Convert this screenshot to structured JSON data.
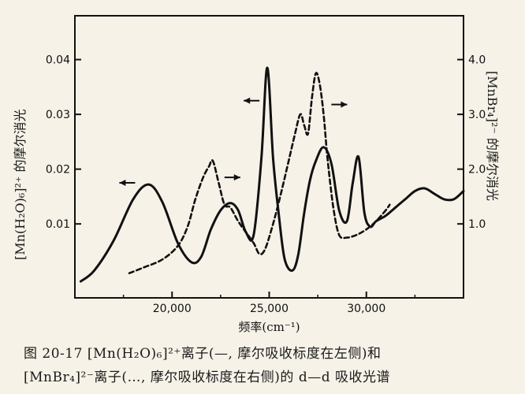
{
  "chart_data": {
    "type": "line",
    "xlabel": "频率(cm⁻¹)",
    "ylabel_left": "[Mn(H₂O)₆]²⁺ 的摩尔消光",
    "ylabel_right": "[MnBr₄]²⁻ 的摩尔消光",
    "x_ticks": [
      20000,
      25000,
      30000
    ],
    "x_tick_labels": [
      "20,000",
      "25,000",
      "30,000"
    ],
    "xlim": [
      15000,
      35000
    ],
    "y_left_ticks": [
      0.01,
      0.02,
      0.03,
      0.04
    ],
    "y_left_tick_labels": [
      "0.01",
      "0.02",
      "0.03",
      "0.04"
    ],
    "ylim_left": [
      -0.0035,
      0.048
    ],
    "y_right_ticks": [
      1.0,
      2.0,
      3.0,
      4.0
    ],
    "y_right_tick_labels": [
      "1.0",
      "2.0",
      "3.0",
      "4.0"
    ],
    "ylim_right": [
      -0.35,
      4.8
    ],
    "series": [
      {
        "name": "[Mn(H₂O)₆]²⁺",
        "axis": "left",
        "style": "solid",
        "x": [
          15300,
          16000,
          17000,
          18000,
          18800,
          19500,
          20300,
          21000,
          21500,
          22000,
          22500,
          23000,
          23400,
          23800,
          24200,
          24600,
          24900,
          25200,
          25500,
          25800,
          26200,
          26500,
          26800,
          27100,
          27400,
          27800,
          28200,
          28600,
          29000,
          29300,
          29600,
          29900,
          30200,
          30500,
          31000,
          31500,
          32000,
          32500,
          33000,
          33500,
          34000,
          34500,
          35000
        ],
        "y": [
          -0.0005,
          0.0015,
          0.007,
          0.0145,
          0.0172,
          0.014,
          0.0065,
          0.003,
          0.004,
          0.009,
          0.0125,
          0.0138,
          0.0125,
          0.0085,
          0.008,
          0.022,
          0.0385,
          0.022,
          0.0115,
          0.0035,
          0.0015,
          0.0045,
          0.012,
          0.018,
          0.0215,
          0.024,
          0.021,
          0.0125,
          0.0105,
          0.0175,
          0.0222,
          0.012,
          0.0095,
          0.0105,
          0.0115,
          0.013,
          0.0145,
          0.016,
          0.0165,
          0.0155,
          0.0145,
          0.0145,
          0.016
        ]
      },
      {
        "name": "[MnBr₄]²⁻",
        "axis": "right",
        "style": "dashed",
        "x": [
          17800,
          18500,
          19500,
          20300,
          20800,
          21200,
          21600,
          21900,
          22100,
          22400,
          22700,
          23000,
          23400,
          23800,
          24200,
          24500,
          24800,
          25200,
          25600,
          26000,
          26300,
          26600,
          26800,
          27000,
          27200,
          27400,
          27600,
          27800,
          28000,
          28300,
          28600,
          29000,
          29500,
          30000,
          30500,
          31000,
          31200
        ],
        "y": [
          0.1,
          0.2,
          0.35,
          0.6,
          0.95,
          1.45,
          1.85,
          2.05,
          2.15,
          1.75,
          1.35,
          1.3,
          1.05,
          0.85,
          0.65,
          0.45,
          0.55,
          1.0,
          1.55,
          2.15,
          2.6,
          3.0,
          2.8,
          2.65,
          3.3,
          3.75,
          3.55,
          3.0,
          2.2,
          1.3,
          0.8,
          0.75,
          0.8,
          0.9,
          1.05,
          1.25,
          1.35
        ]
      }
    ],
    "annotations": [
      {
        "type": "arrow",
        "direction": "left",
        "series": "[Mn(H₂O)₆]²⁺",
        "x": 18100,
        "y_axis": "left",
        "y": 0.0175
      },
      {
        "type": "arrow",
        "direction": "left",
        "series": "[Mn(H₂O)₆]²⁺",
        "x": 24500,
        "y_axis": "left",
        "y": 0.0325
      },
      {
        "type": "arrow",
        "direction": "right",
        "series": "[MnBr₄]²⁻",
        "x": 22700,
        "y_axis": "right",
        "y": 1.85
      },
      {
        "type": "arrow",
        "direction": "right",
        "series": "[MnBr₄]²⁻",
        "x": 28200,
        "y_axis": "right",
        "y": 3.18
      }
    ],
    "grid": false,
    "legend": "none"
  },
  "caption": {
    "line1": "图 20-17  [Mn(H₂O)₆]²⁺离子(—, 摩尔吸收标度在左侧)和",
    "line2": "[MnBr₄]²⁻离子(…, 摩尔吸收标度在右侧)的 d—d 吸收光谱"
  }
}
